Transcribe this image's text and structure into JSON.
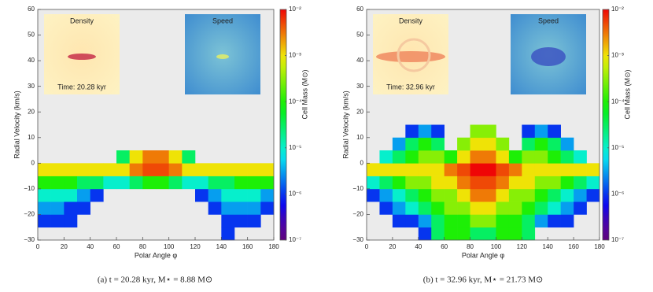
{
  "chart_data": [
    {
      "type": "heatmap",
      "caption": "(a) t = 20.28 kyr, M⋆ = 8.88 M⊙",
      "xlabel": "Polar Angle φ",
      "ylabel": "Radial Velocity (km/s)",
      "inset_labels": [
        "Density",
        "Speed"
      ],
      "time_label": "Time: 20.28 kyr",
      "xlim": [
        0,
        180
      ],
      "ylim": [
        -30,
        60
      ],
      "xticks": [
        0,
        20,
        40,
        60,
        80,
        100,
        120,
        140,
        160,
        180
      ],
      "yticks": [
        {
          "value": -30,
          "label": "−30"
        },
        {
          "value": -20,
          "label": "−20"
        },
        {
          "value": -10,
          "label": "−10"
        },
        0,
        10,
        20,
        30,
        40,
        50,
        60
      ],
      "colorbar": {
        "label": "Cell Mass (M⊙)",
        "lim": [
          1e-07,
          0.01
        ],
        "log": true,
        "ticks": [
          {
            "value": 0.01,
            "label": "10⁻²"
          },
          {
            "value": 0.001,
            "label": "10⁻³"
          },
          {
            "value": 0.0001,
            "label": "10⁻⁴"
          },
          {
            "value": 1e-05,
            "label": "10⁻⁵"
          },
          {
            "value": 1e-06,
            "label": "10⁻⁶"
          },
          {
            "value": 1e-07,
            "label": "10⁻⁷"
          }
        ]
      },
      "xbins": [
        0,
        10,
        20,
        30,
        40,
        50,
        60,
        70,
        80,
        90,
        100,
        110,
        120,
        130,
        140,
        150,
        160,
        170,
        180
      ],
      "ybins": [
        -30,
        -25,
        -20,
        -15,
        -10,
        -5,
        0,
        5
      ],
      "z": [
        [
          null,
          null,
          null,
          null,
          null,
          null,
          null,
          null,
          null,
          null,
          null,
          null,
          null,
          null,
          1e-06,
          null,
          null,
          null
        ],
        [
          1e-06,
          1e-06,
          1e-06,
          null,
          null,
          null,
          null,
          null,
          null,
          null,
          null,
          null,
          null,
          null,
          1e-06,
          1e-06,
          1e-06,
          null
        ],
        [
          3e-06,
          3e-06,
          1e-06,
          1e-06,
          null,
          null,
          null,
          null,
          null,
          null,
          null,
          null,
          null,
          1e-06,
          3e-06,
          3e-06,
          3e-06,
          1e-06
        ],
        [
          1e-05,
          1e-05,
          1e-05,
          3e-06,
          1e-06,
          null,
          null,
          null,
          null,
          null,
          null,
          null,
          1e-06,
          3e-06,
          1e-05,
          1e-05,
          1e-05,
          3e-06
        ],
        [
          0.0001,
          0.0001,
          0.0001,
          3e-05,
          3e-05,
          1e-05,
          1e-05,
          3e-05,
          0.0001,
          0.0001,
          3e-05,
          1e-05,
          1e-05,
          3e-05,
          3e-05,
          0.0001,
          0.0001,
          0.0001
        ],
        [
          0.001,
          0.001,
          0.001,
          0.001,
          0.001,
          0.001,
          0.001,
          0.003,
          0.005,
          0.005,
          0.003,
          0.001,
          0.001,
          0.001,
          0.001,
          0.001,
          0.001,
          0.001
        ],
        [
          null,
          null,
          null,
          null,
          null,
          null,
          3e-05,
          0.001,
          0.003,
          0.003,
          0.001,
          3e-05,
          null,
          null,
          null,
          null,
          null,
          null
        ]
      ]
    },
    {
      "type": "heatmap",
      "caption": "(b) t = 32.96 kyr, M⋆ = 21.73 M⊙",
      "xlabel": "Polar Angle φ",
      "ylabel": "Radial Velocity (km/s)",
      "inset_labels": [
        "Density",
        "Speed"
      ],
      "time_label": "Time: 32.96 kyr",
      "xlim": [
        0,
        180
      ],
      "ylim": [
        -30,
        60
      ],
      "xticks": [
        0,
        20,
        40,
        60,
        80,
        100,
        120,
        140,
        160,
        180
      ],
      "yticks": [
        {
          "value": -30,
          "label": "−30"
        },
        {
          "value": -20,
          "label": "−20"
        },
        {
          "value": -10,
          "label": "−10"
        },
        0,
        10,
        20,
        30,
        40,
        50,
        60
      ],
      "colorbar": {
        "label": "Cell Mass (M⊙)",
        "lim": [
          1e-07,
          0.01
        ],
        "log": true,
        "ticks": [
          {
            "value": 0.01,
            "label": "10⁻²"
          },
          {
            "value": 0.001,
            "label": "10⁻³"
          },
          {
            "value": 0.0001,
            "label": "10⁻⁴"
          },
          {
            "value": 1e-05,
            "label": "10⁻⁵"
          },
          {
            "value": 1e-06,
            "label": "10⁻⁶"
          },
          {
            "value": 1e-07,
            "label": "10⁻⁷"
          }
        ]
      },
      "xbins": [
        0,
        10,
        20,
        30,
        40,
        50,
        60,
        70,
        80,
        90,
        100,
        110,
        120,
        130,
        140,
        150,
        160,
        170,
        180
      ],
      "ybins": [
        -30,
        -25,
        -20,
        -15,
        -10,
        -5,
        0,
        5,
        10,
        15
      ],
      "z": [
        [
          null,
          null,
          null,
          null,
          1e-06,
          3e-05,
          0.0001,
          0.0001,
          3e-05,
          3e-05,
          0.0001,
          0.0001,
          3e-05,
          null,
          null,
          null,
          null,
          null
        ],
        [
          null,
          null,
          1e-06,
          1e-06,
          3e-06,
          3e-05,
          0.0001,
          0.0001,
          0.0003,
          0.0003,
          0.0001,
          0.0001,
          3e-05,
          3e-06,
          1e-06,
          1e-06,
          null,
          null
        ],
        [
          null,
          1e-06,
          3e-06,
          1e-05,
          3e-05,
          0.0001,
          0.0003,
          0.0003,
          0.001,
          0.001,
          0.0003,
          0.0003,
          0.0001,
          3e-05,
          1e-05,
          3e-06,
          1e-06,
          null
        ],
        [
          1e-06,
          3e-06,
          1e-05,
          3e-05,
          0.0001,
          0.0003,
          0.0003,
          0.001,
          0.003,
          0.003,
          0.001,
          0.0003,
          0.0003,
          0.0001,
          3e-05,
          1e-05,
          3e-06,
          1e-06
        ],
        [
          1e-05,
          3e-05,
          0.0001,
          0.0003,
          0.0003,
          0.001,
          0.001,
          0.003,
          0.005,
          0.005,
          0.003,
          0.001,
          0.001,
          0.0003,
          0.0003,
          0.0001,
          3e-05,
          1e-05
        ],
        [
          0.001,
          0.001,
          0.001,
          0.001,
          0.001,
          0.001,
          0.003,
          0.005,
          0.01,
          0.01,
          0.005,
          0.003,
          0.001,
          0.001,
          0.001,
          0.001,
          0.001,
          0.001
        ],
        [
          null,
          1e-05,
          3e-05,
          0.0001,
          0.0003,
          0.0003,
          0.0001,
          0.001,
          0.003,
          0.003,
          0.001,
          0.0001,
          0.0003,
          0.0003,
          0.0001,
          3e-05,
          1e-05,
          null
        ],
        [
          null,
          null,
          3e-06,
          3e-05,
          0.0001,
          3e-05,
          null,
          0.0003,
          0.001,
          0.001,
          0.0003,
          null,
          3e-05,
          0.0001,
          3e-05,
          3e-06,
          null,
          null
        ],
        [
          null,
          null,
          null,
          1e-06,
          3e-06,
          1e-06,
          null,
          null,
          0.0003,
          0.0003,
          null,
          null,
          1e-06,
          3e-06,
          1e-06,
          null,
          null,
          null
        ]
      ]
    }
  ]
}
